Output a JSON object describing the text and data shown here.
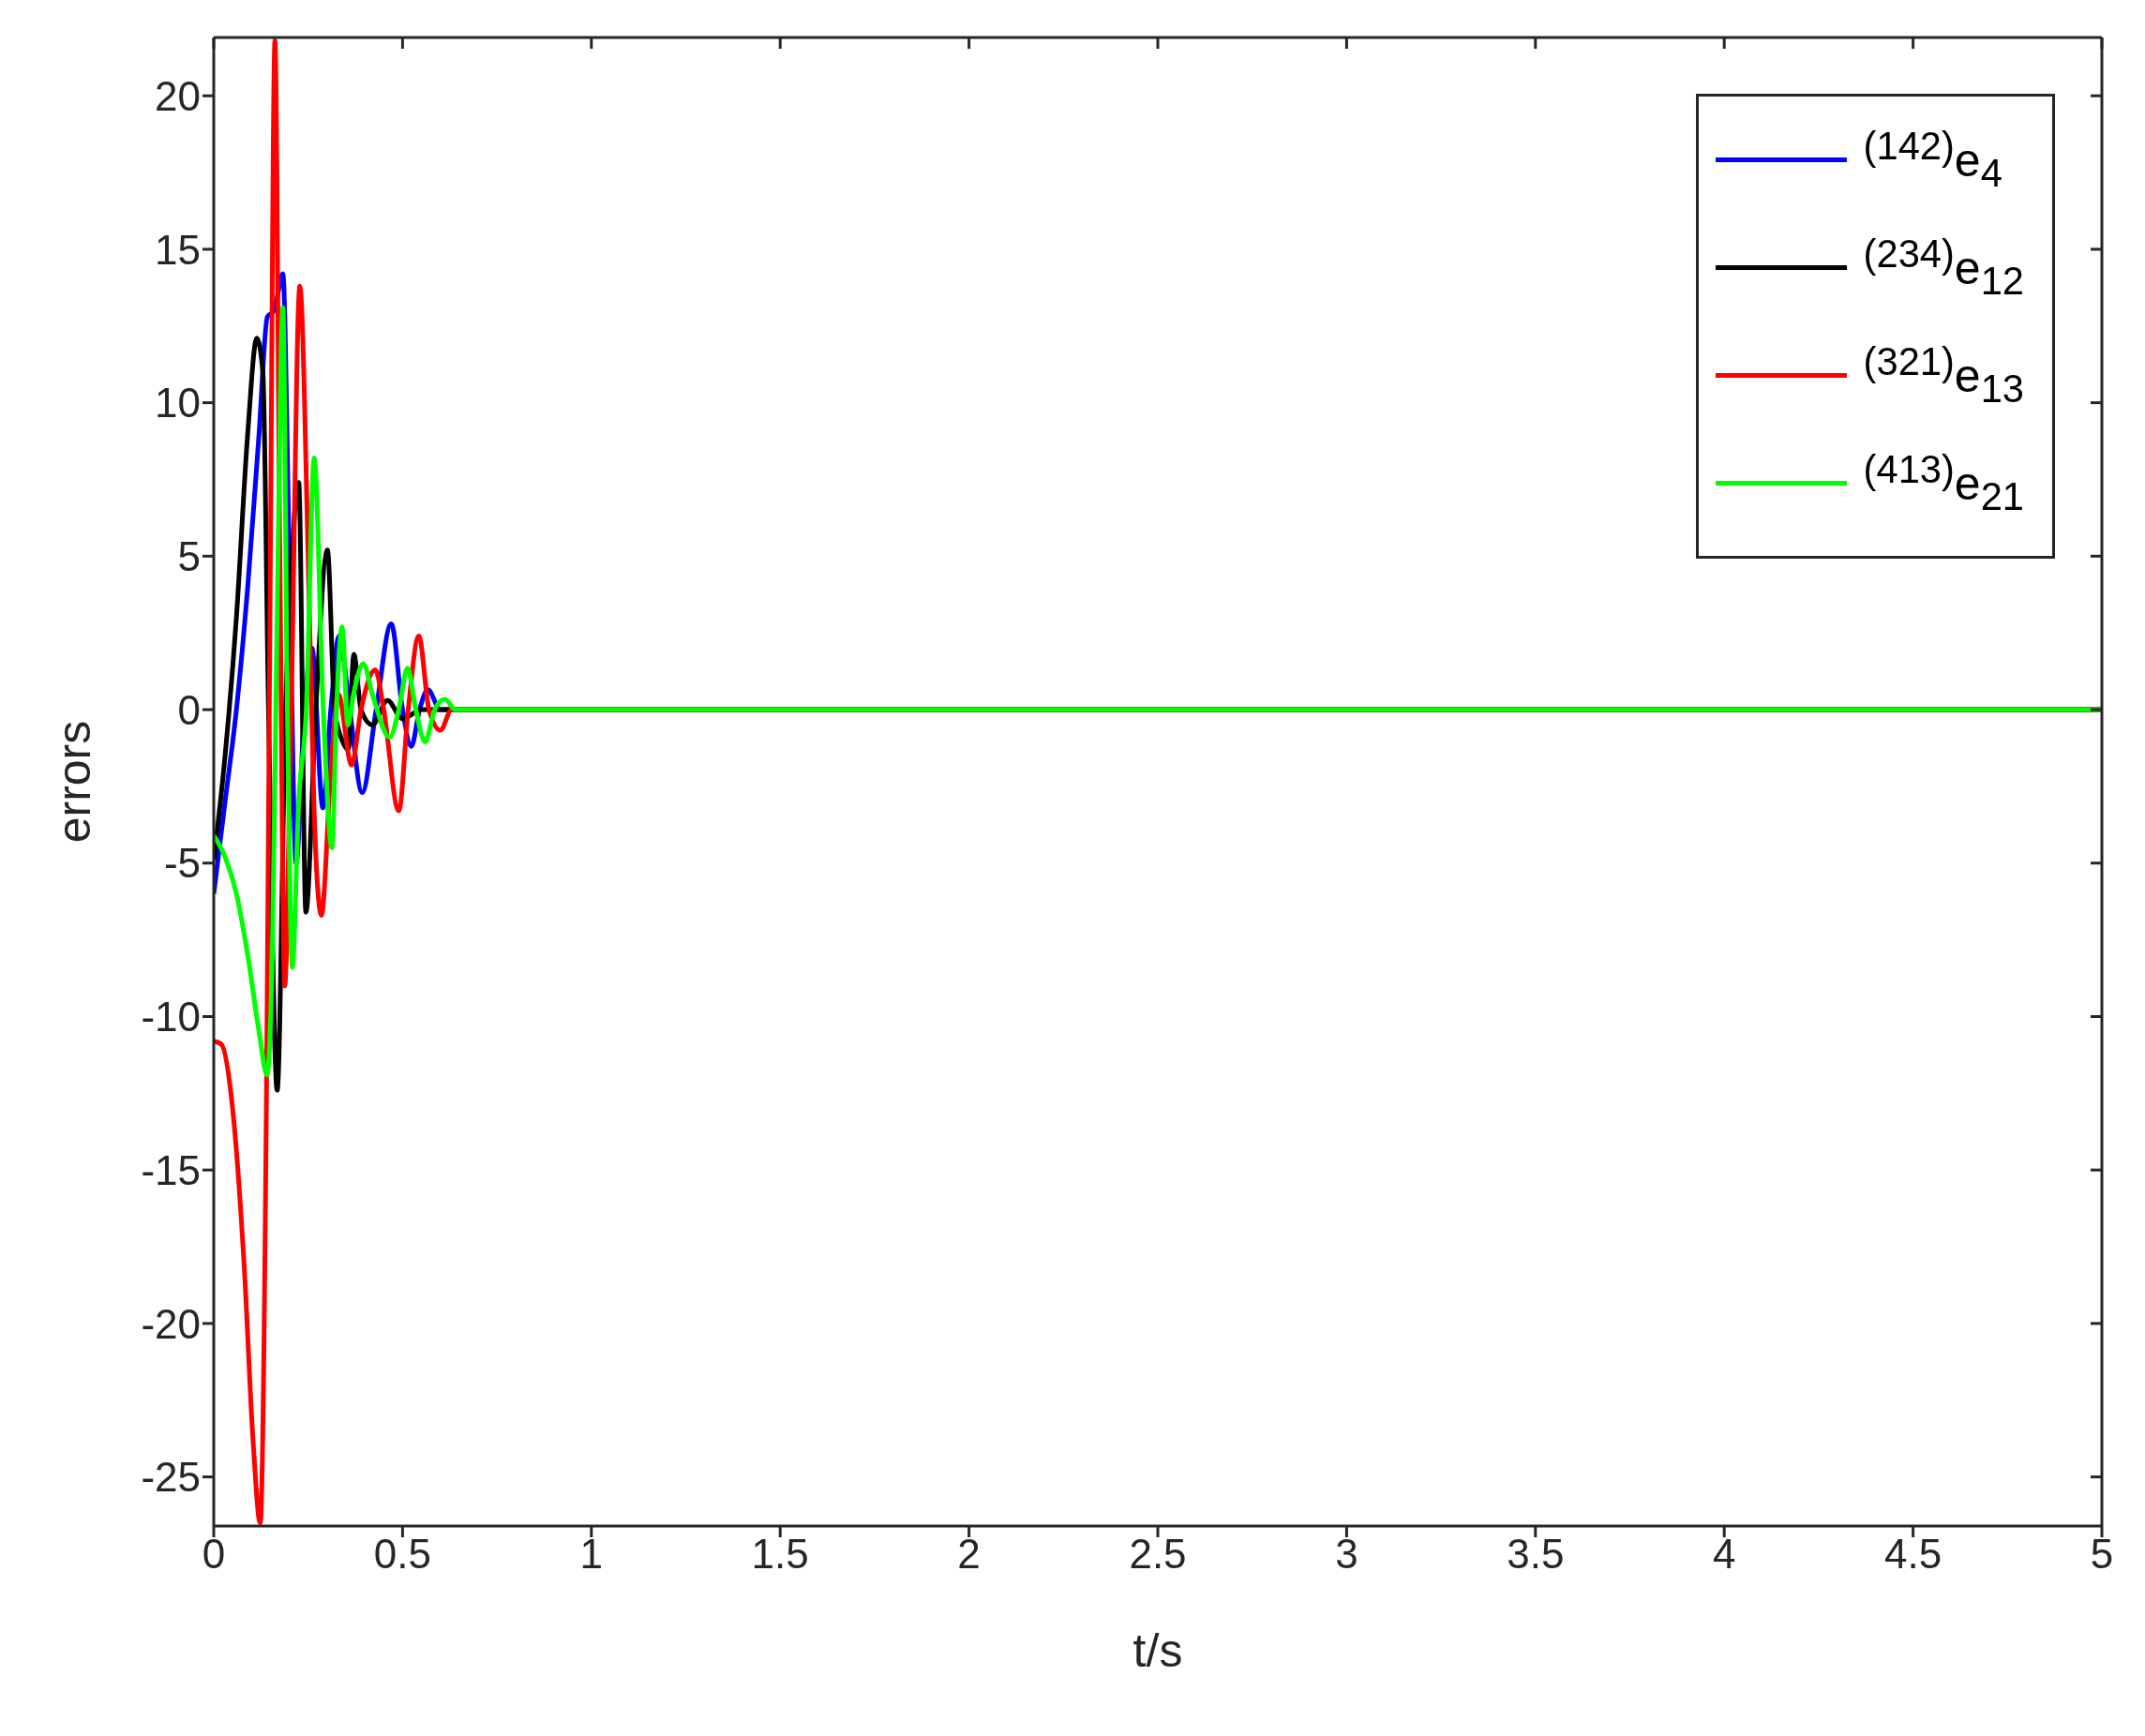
{
  "chart_data": {
    "type": "line",
    "xlabel": "t/s",
    "ylabel": "errors",
    "xlim": [
      0,
      5
    ],
    "xticks": [
      0,
      0.5,
      1,
      1.5,
      2,
      2.5,
      3,
      3.5,
      4,
      4.5,
      5
    ],
    "ylim": [
      -26.6,
      21.9
    ],
    "yticks": [
      -25,
      -20,
      -15,
      -10,
      -5,
      0,
      5,
      10,
      15,
      20
    ],
    "legend": "top right",
    "line_style": "solid",
    "series": [
      {
        "name": "$^{(142)}$e$_{4}$",
        "color": "#0000ff",
        "x": [
          0,
          0.03,
          0.06,
          0.09,
          0.12,
          0.142,
          0.16,
          0.183,
          0.2,
          0.218,
          0.24,
          0.26,
          0.289,
          0.31,
          0.332,
          0.36,
          0.393,
          0.43,
          0.47,
          0.5,
          0.523,
          0.545,
          0.567,
          0.6,
          0.65,
          5
        ],
        "values": [
          -6.0,
          -3,
          0,
          4,
          9,
          12.8,
          13,
          14.2,
          5,
          -5,
          0,
          2,
          -3.2,
          0,
          2.4,
          0,
          -2.7,
          0,
          2.8,
          0,
          -1.2,
          0,
          0.65,
          0,
          0,
          0
        ]
      },
      {
        "name": "$^{(234)}$e$_{12}$",
        "color": "#000000",
        "x": [
          0,
          0.03,
          0.06,
          0.09,
          0.114,
          0.13,
          0.145,
          0.168,
          0.19,
          0.207,
          0.225,
          0.244,
          0.27,
          0.301,
          0.32,
          0.34,
          0.356,
          0.371,
          0.39,
          0.42,
          0.46,
          0.5,
          0.55,
          5
        ],
        "values": [
          -4.9,
          -1.5,
          3,
          9,
          12.1,
          11,
          0,
          -12.4,
          0,
          5,
          7.4,
          -6.6,
          0,
          5.2,
          0,
          -1,
          -1.3,
          1.8,
          0,
          -0.5,
          0.3,
          -0.3,
          0,
          0
        ]
      },
      {
        "name": "$^{(321)}$e$_{13}$",
        "color": "#ff0000",
        "x": [
          0,
          0.02,
          0.05,
          0.08,
          0.105,
          0.123,
          0.14,
          0.15,
          0.162,
          0.175,
          0.188,
          0.205,
          0.228,
          0.25,
          0.265,
          0.285,
          0.31,
          0.33,
          0.365,
          0.39,
          0.428,
          0.45,
          0.49,
          0.515,
          0.543,
          0.57,
          0.6,
          0.63,
          5
        ],
        "values": [
          -10.8,
          -10.9,
          -13,
          -18,
          -24,
          -26.5,
          -12,
          5,
          21.8,
          5,
          -9.0,
          0,
          13.8,
          5,
          -3,
          -6.7,
          -2,
          0.5,
          -1.8,
          0,
          1.3,
          0,
          -3.3,
          0,
          2.4,
          0,
          -0.67,
          0,
          0
        ]
      },
      {
        "name": "$^{(413)}$e$_{21}$",
        "color": "#00ff00",
        "x": [
          0,
          0.03,
          0.06,
          0.09,
          0.12,
          0.141,
          0.155,
          0.17,
          0.183,
          0.195,
          0.208,
          0.225,
          0.245,
          0.266,
          0.29,
          0.313,
          0.325,
          0.34,
          0.355,
          0.37,
          0.396,
          0.42,
          0.466,
          0.49,
          0.513,
          0.535,
          0.56,
          0.585,
          0.612,
          0.64,
          5
        ],
        "values": [
          -4.1,
          -4.8,
          -6,
          -8,
          -10.5,
          -11.9,
          -8,
          5,
          13.1,
          0,
          -8.4,
          -3,
          0,
          8.2,
          0,
          -4.5,
          0,
          2.7,
          -0.5,
          0.5,
          1.5,
          0.5,
          -0.9,
          0,
          1.35,
          0,
          -1.05,
          0,
          0.34,
          0,
          0
        ]
      }
    ]
  }
}
